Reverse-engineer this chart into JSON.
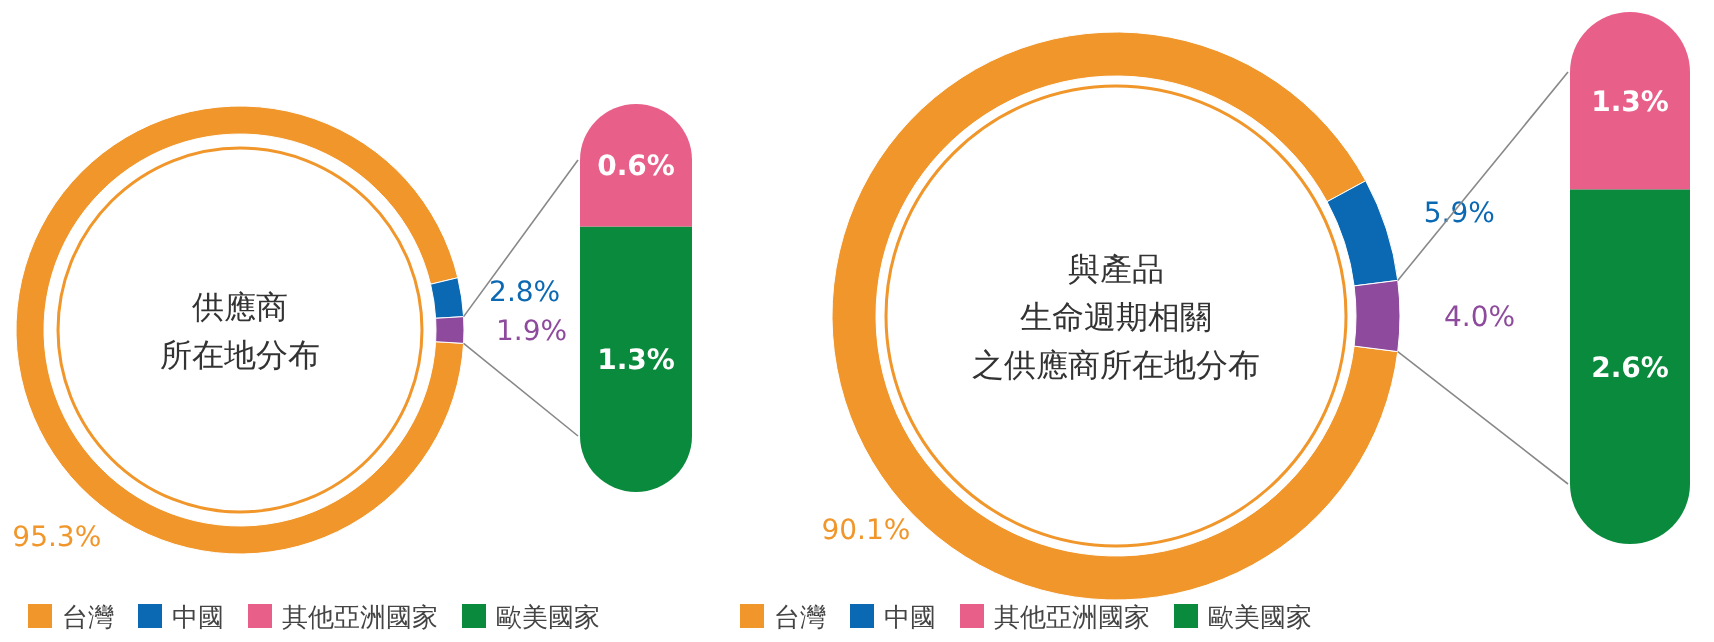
{
  "chart_data": [
    {
      "type": "donut",
      "title": "供應商所在地分布",
      "categories": [
        "台灣",
        "中國",
        null
      ],
      "values": [
        95.3,
        2.8,
        1.9
      ],
      "colors": [
        "#f0962a",
        "#0b69b3",
        "#8e4a9c"
      ],
      "value_labels": [
        "95.3%",
        "2.8%",
        "1.9%"
      ],
      "legend": "bottom"
    },
    {
      "type": "bar",
      "stacked": true,
      "categories": [
        null
      ],
      "series": [
        {
          "name": "歐美國家",
          "color": "#0a8a3c",
          "values": [
            1.3
          ],
          "value_labels": [
            "1.3%"
          ]
        },
        {
          "name": "其他亞洲國家",
          "color": "#e8608a",
          "values": [
            0.6
          ],
          "value_labels": [
            "0.6%"
          ]
        }
      ],
      "legend": "bottom"
    },
    {
      "type": "donut",
      "title": "與產品生命週期相關之供應商所在地分布",
      "categories": [
        "台灣",
        "中國",
        null
      ],
      "values": [
        90.1,
        5.9,
        4.0
      ],
      "colors": [
        "#f0962a",
        "#0b69b3",
        "#8e4a9c"
      ],
      "value_labels": [
        "90.1%",
        "5.9%",
        "4.0%"
      ],
      "legend": "bottom"
    },
    {
      "type": "bar",
      "stacked": true,
      "categories": [
        null
      ],
      "series": [
        {
          "name": "歐美國家",
          "color": "#0a8a3c",
          "values": [
            2.6
          ],
          "value_labels": [
            "2.6%"
          ]
        },
        {
          "name": "其他亞洲國家",
          "color": "#e8608a",
          "values": [
            1.3
          ],
          "value_labels": [
            "1.3%"
          ]
        }
      ],
      "legend": "bottom"
    }
  ]
}
